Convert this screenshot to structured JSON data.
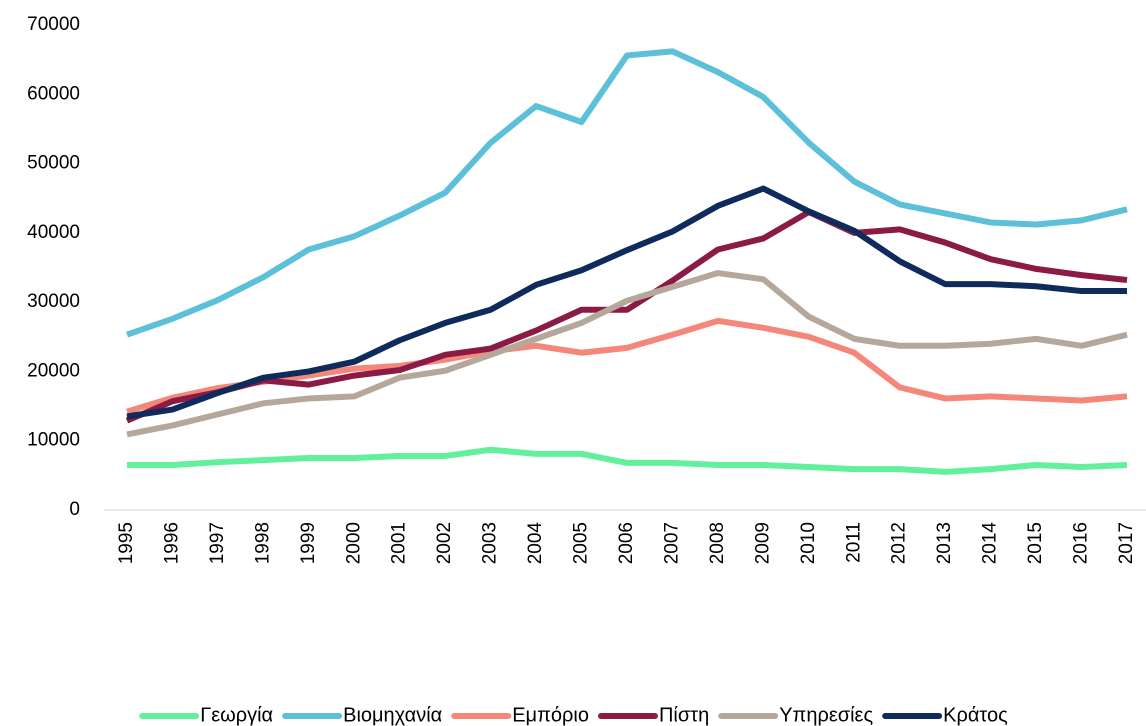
{
  "chart_data": {
    "type": "line",
    "categories": [
      "1995",
      "1996",
      "1997",
      "1998",
      "1999",
      "2000",
      "2001",
      "2002",
      "2003",
      "2004",
      "2005",
      "2006",
      "2007",
      "2008",
      "2009",
      "2010",
      "2011",
      "2012",
      "2013",
      "2014",
      "2015",
      "2016",
      "2017"
    ],
    "series": [
      {
        "name": "Γεωργία",
        "color": "#63f09c",
        "values": [
          6500,
          6500,
          6900,
          7200,
          7500,
          7500,
          7800,
          7800,
          8700,
          8100,
          8100,
          6800,
          6800,
          6500,
          6500,
          6200,
          5900,
          5900,
          5500,
          5900,
          6500,
          6200,
          6500
        ]
      },
      {
        "name": "Βιομηχανία",
        "color": "#5bc0d8",
        "values": [
          25300,
          27600,
          30300,
          33600,
          37600,
          39500,
          42500,
          45800,
          53000,
          58300,
          56000,
          65600,
          66200,
          63200,
          59600,
          53000,
          47400,
          44100,
          42800,
          41500,
          41200,
          41800,
          43400
        ]
      },
      {
        "name": "Εμπόριο",
        "color": "#f4877a",
        "values": [
          14200,
          16200,
          17600,
          18500,
          19400,
          20400,
          20800,
          21700,
          22900,
          23700,
          22700,
          23400,
          25300,
          27300,
          26300,
          25000,
          22700,
          17700,
          16100,
          16400,
          16100,
          15800,
          16400
        ]
      },
      {
        "name": "Πίστη",
        "color": "#8b1a44",
        "values": [
          12900,
          15700,
          17000,
          18700,
          18100,
          19400,
          20200,
          22400,
          23300,
          25900,
          28900,
          28900,
          33100,
          37600,
          39200,
          43000,
          40000,
          40500,
          38600,
          36200,
          34800,
          33900,
          33200
        ]
      },
      {
        "name": "Υπηρεσίες",
        "color": "#b5a89b",
        "values": [
          10900,
          12200,
          13800,
          15400,
          16100,
          16400,
          19100,
          20100,
          22400,
          24700,
          27000,
          30200,
          32200,
          34200,
          33300,
          27900,
          24700,
          23700,
          23700,
          24000,
          24700,
          23700,
          25300
        ]
      },
      {
        "name": "Κράτος",
        "color": "#0f2b5b",
        "values": [
          13500,
          14500,
          16900,
          19100,
          20000,
          21400,
          24500,
          27000,
          28900,
          32500,
          34600,
          37500,
          40200,
          43900,
          46400,
          43100,
          40300,
          35900,
          32600,
          32600,
          32300,
          31600,
          31600
        ]
      }
    ],
    "ylim": [
      0,
      70000
    ],
    "yticks": [
      0,
      10000,
      20000,
      30000,
      40000,
      50000,
      60000,
      70000
    ],
    "legend": "bottom"
  }
}
